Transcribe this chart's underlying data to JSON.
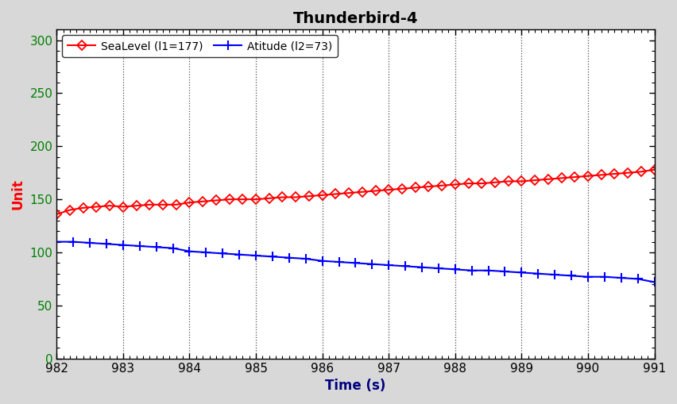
{
  "title": "Thunderbird-4",
  "xlabel": "Time (s)",
  "ylabel": "Unit",
  "title_color": "#000000",
  "xlabel_color": "#000080",
  "ylabel_color": "#FF0000",
  "ytick_color": "#008000",
  "xtick_color": "#000000",
  "xmin": 982,
  "xmax": 991,
  "ymin": 0,
  "ymax": 310,
  "yticks": [
    0,
    50,
    100,
    150,
    200,
    250,
    300
  ],
  "xticks": [
    982,
    983,
    984,
    985,
    986,
    987,
    988,
    989,
    990,
    991
  ],
  "series1_label": "SeaLevel (l1=177)",
  "series1_color": "#FF0000",
  "series2_label": "Atitude (l2=73)",
  "series2_color": "#0000FF",
  "series1_x": [
    982.0,
    982.2,
    982.4,
    982.6,
    982.8,
    983.0,
    983.2,
    983.4,
    983.6,
    983.8,
    984.0,
    984.2,
    984.4,
    984.6,
    984.8,
    985.0,
    985.2,
    985.4,
    985.6,
    985.8,
    986.0,
    986.2,
    986.4,
    986.6,
    986.8,
    987.0,
    987.2,
    987.4,
    987.6,
    987.8,
    988.0,
    988.2,
    988.4,
    988.6,
    988.8,
    989.0,
    989.2,
    989.4,
    989.6,
    989.8,
    990.0,
    990.2,
    990.4,
    990.6,
    990.8,
    991.0
  ],
  "series1_y": [
    136,
    140,
    142,
    143,
    144,
    143,
    144,
    145,
    145,
    145,
    147,
    148,
    149,
    150,
    150,
    150,
    151,
    152,
    152,
    153,
    154,
    155,
    156,
    157,
    158,
    159,
    160,
    161,
    162,
    163,
    164,
    165,
    165,
    166,
    167,
    167,
    168,
    169,
    170,
    171,
    172,
    173,
    174,
    175,
    176,
    178
  ],
  "series2_x": [
    982.0,
    982.25,
    982.5,
    982.75,
    983.0,
    983.25,
    983.5,
    983.75,
    984.0,
    984.25,
    984.5,
    984.75,
    985.0,
    985.25,
    985.5,
    985.75,
    986.0,
    986.25,
    986.5,
    986.75,
    987.0,
    987.25,
    987.5,
    987.75,
    988.0,
    988.25,
    988.5,
    988.75,
    989.0,
    989.25,
    989.5,
    989.75,
    990.0,
    990.25,
    990.5,
    990.75,
    991.0
  ],
  "series2_y": [
    110,
    110,
    109,
    108,
    107,
    106,
    105,
    104,
    101,
    100,
    99,
    98,
    97,
    96,
    95,
    94,
    92,
    91,
    90,
    89,
    88,
    87,
    86,
    85,
    84,
    83,
    83,
    82,
    81,
    80,
    79,
    78,
    77,
    77,
    76,
    75,
    72
  ],
  "grid_color": "#000000",
  "background_color": "#FFFFFF",
  "fig_background": "#D8D8D8"
}
